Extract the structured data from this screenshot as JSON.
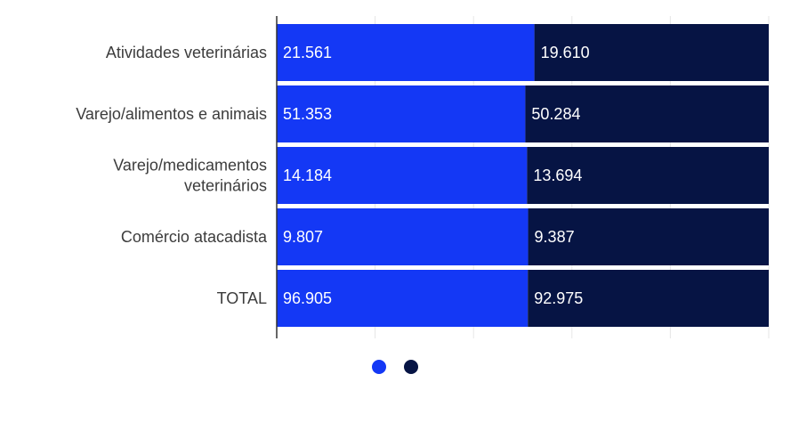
{
  "chart_data": {
    "type": "bar",
    "orientation": "horizontal",
    "stacked": true,
    "normalized": true,
    "categories": [
      [
        "Atividades veterinárias"
      ],
      [
        "Varejo/alimentos e animais"
      ],
      [
        "Varejo/medicamentos",
        "veterinários"
      ],
      [
        "Comércio atacadista"
      ],
      [
        "TOTAL"
      ]
    ],
    "series": [
      {
        "color": "#1438f5",
        "values": [
          21561,
          51353,
          14184,
          9807,
          96905
        ],
        "labels": [
          "21.561",
          "51.353",
          "14.184",
          "9.807",
          "96.905"
        ]
      },
      {
        "color": "#061444",
        "values": [
          19610,
          50284,
          13694,
          9387,
          92975
        ],
        "labels": [
          "19.610",
          "50.284",
          "13.694",
          "9.387",
          "92.975"
        ]
      }
    ],
    "xlim": [
      0,
      100
    ],
    "grid": true,
    "legend_position": "bottom",
    "title": "",
    "xlabel": "",
    "ylabel": ""
  }
}
